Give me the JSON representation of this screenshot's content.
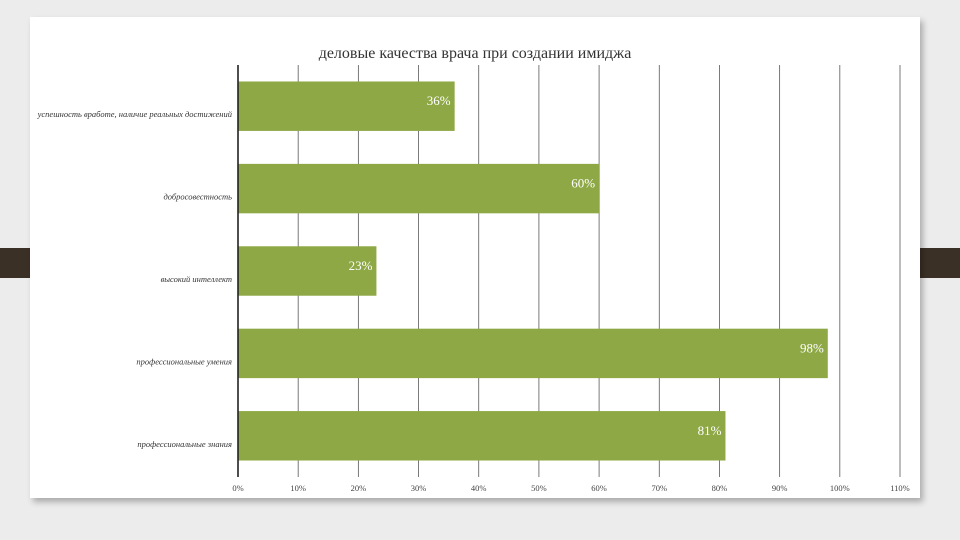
{
  "chart_data": {
    "type": "bar",
    "orientation": "horizontal",
    "title": "деловые качества врача при создании имиджа",
    "xlabel": "",
    "ylabel": "",
    "categories": [
      "успешность вработе, наличие реальных достижений",
      "добросовестность",
      "высокий интеллект",
      "профессиональные умения",
      "профессиональные знания"
    ],
    "values": [
      36,
      60,
      23,
      98,
      81
    ],
    "value_labels": [
      "36%",
      "60%",
      "23%",
      "98%",
      "81%"
    ],
    "xlim": [
      0,
      110
    ],
    "xticks": [
      "0%",
      "10%",
      "20%",
      "30%",
      "40%",
      "50%",
      "60%",
      "70%",
      "80%",
      "90%",
      "100%",
      "110%"
    ],
    "grid": true,
    "legend": "none",
    "bar_color": "#8ea845"
  }
}
